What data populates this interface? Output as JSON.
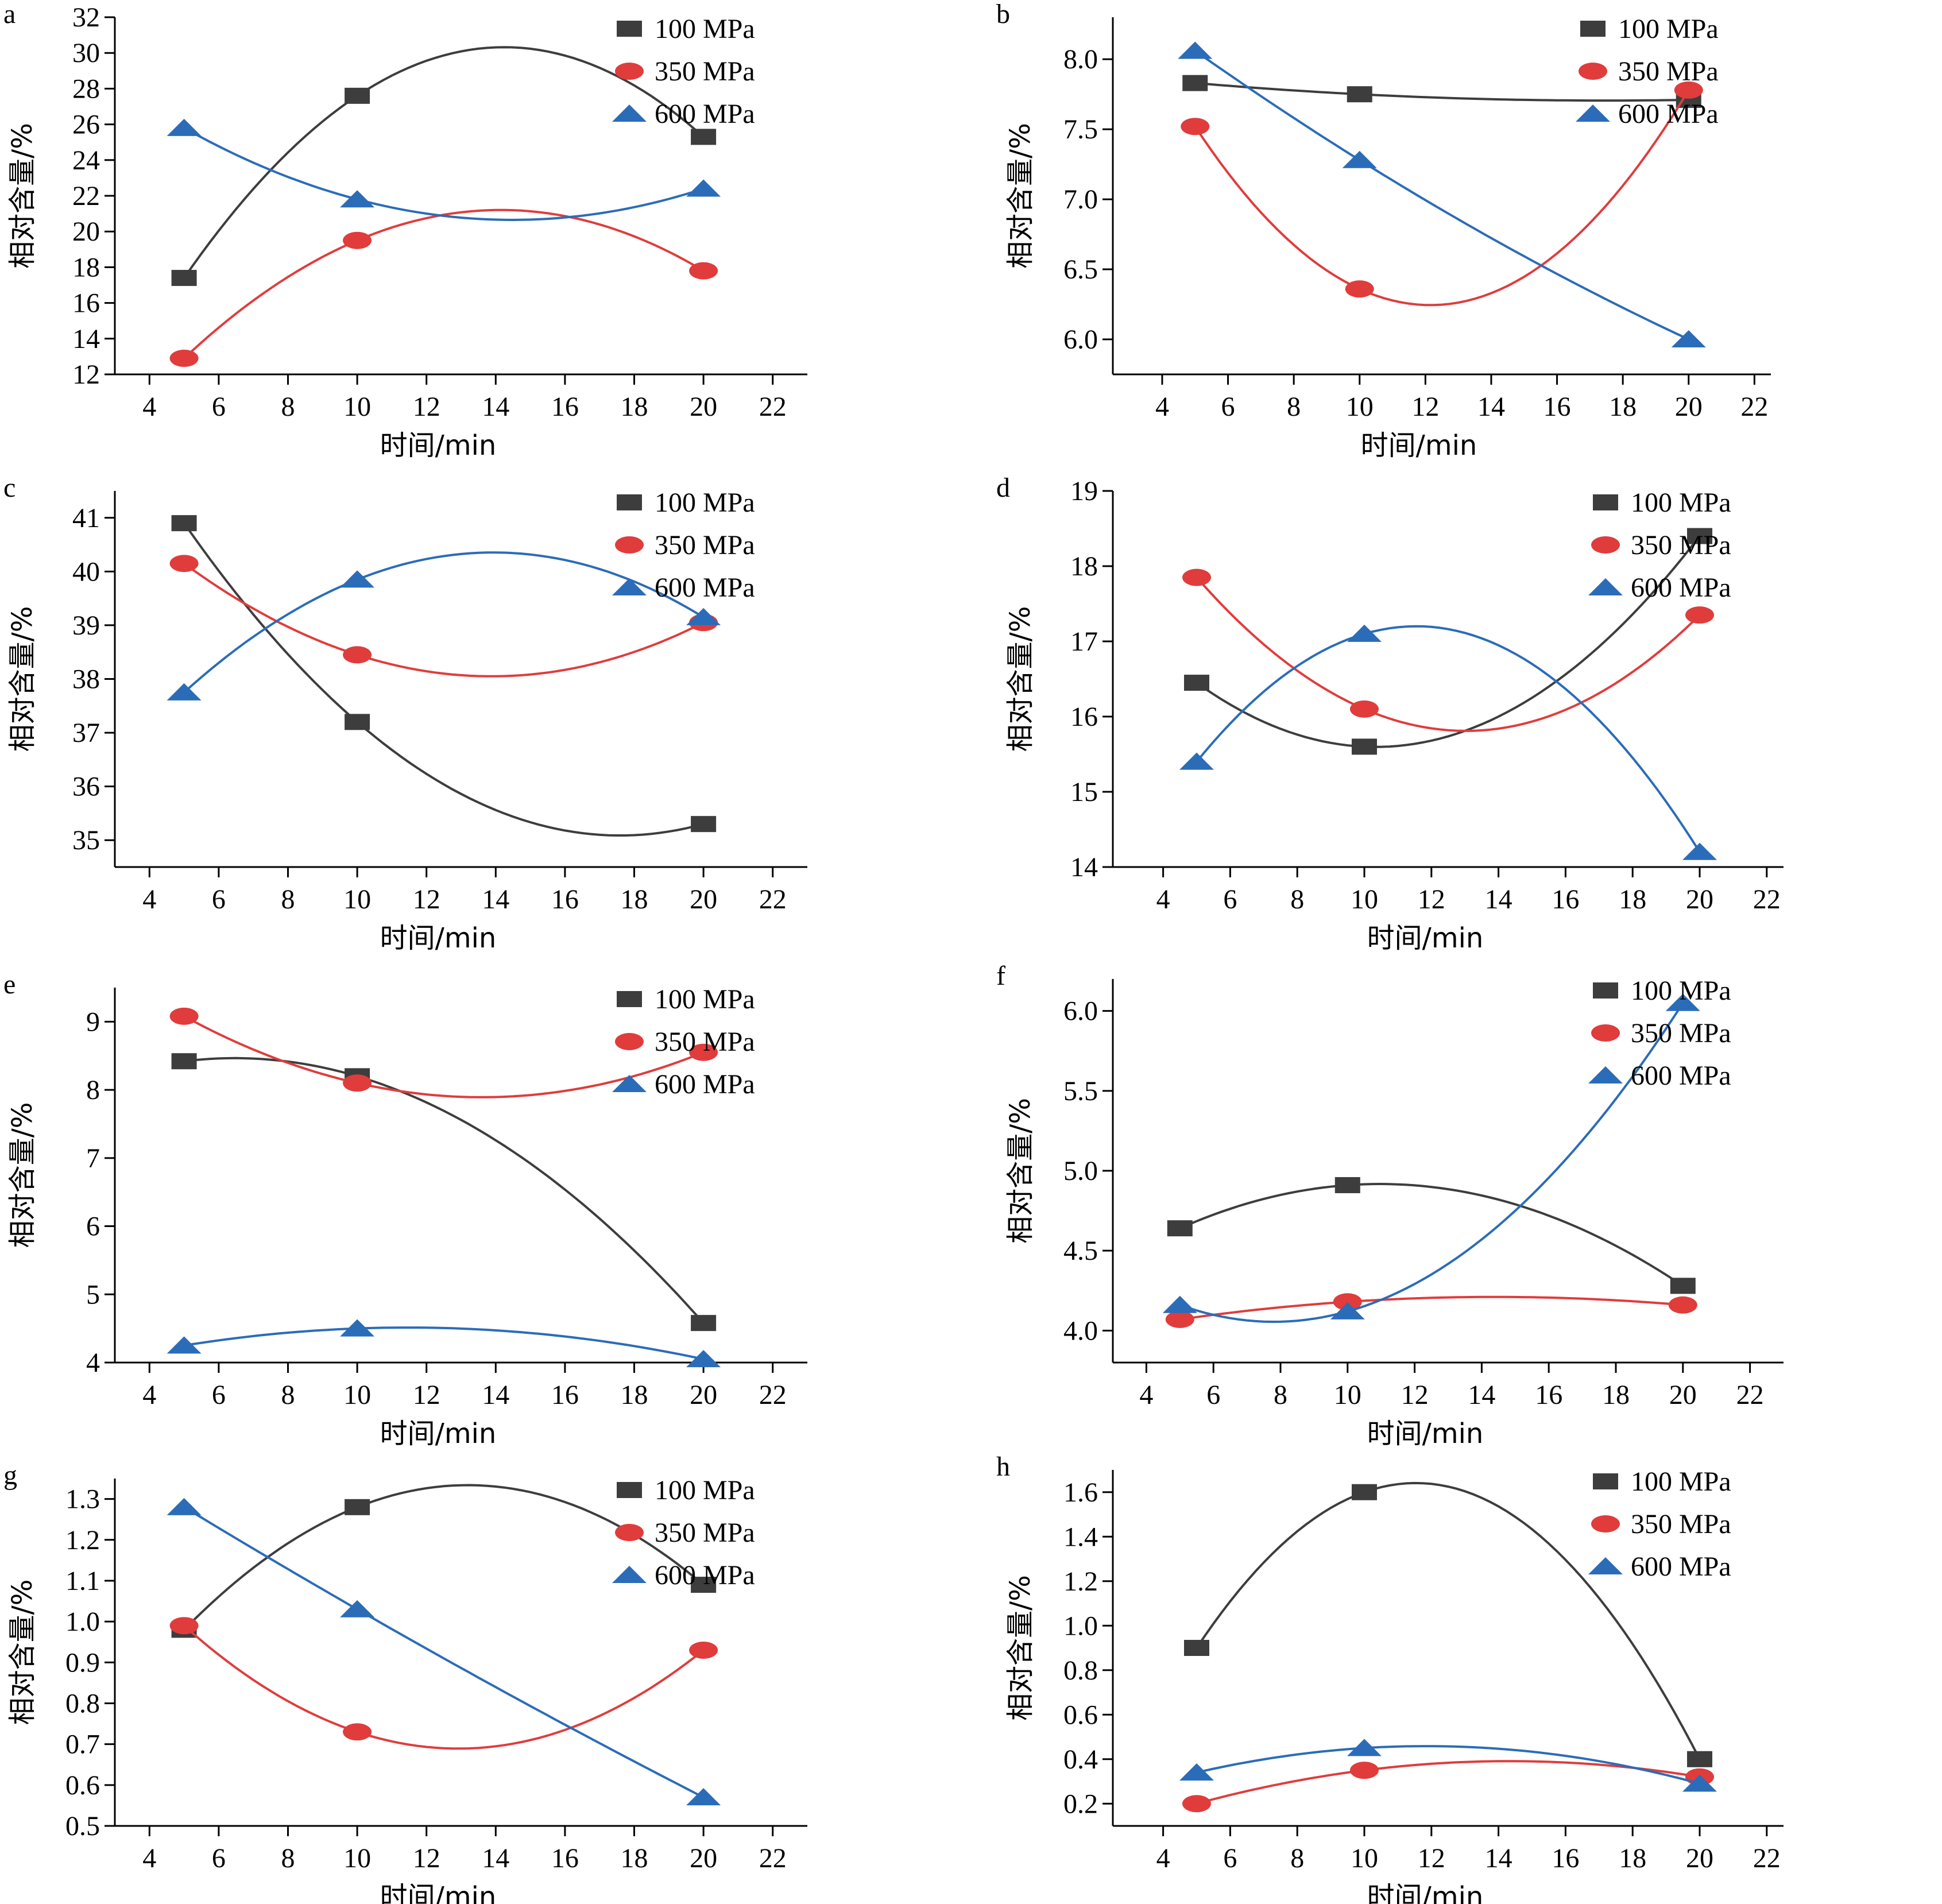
{
  "colors": {
    "s100": "#3d3d3d",
    "s350": "#e03c3c",
    "s600": "#2b6cb8"
  },
  "chart_data": [
    {
      "panel_label": "a",
      "type": "scatter",
      "x": [
        5,
        10,
        20
      ],
      "xlabel": "时间/min",
      "ylabel": "相对含量/%",
      "xlim": [
        3,
        23
      ],
      "xticks": [
        4,
        6,
        8,
        10,
        12,
        14,
        16,
        18,
        20,
        22
      ],
      "ylim": [
        12,
        32
      ],
      "yticks": [
        12,
        14,
        16,
        18,
        20,
        22,
        24,
        26,
        28,
        30,
        32
      ],
      "legend_position": "top-right",
      "series": [
        {
          "name": "100 MPa",
          "marker": "square",
          "values": [
            17.4,
            27.6,
            25.3
          ]
        },
        {
          "name": "350 MPa",
          "marker": "circle",
          "values": [
            12.9,
            19.5,
            17.8
          ]
        },
        {
          "name": "600 MPa",
          "marker": "triangle",
          "values": [
            25.8,
            21.8,
            22.4
          ]
        }
      ]
    },
    {
      "panel_label": "b",
      "type": "scatter",
      "x": [
        5,
        10,
        20
      ],
      "xlabel": "时间/min",
      "ylabel": "相对含量/%",
      "xlim": [
        2.5,
        22.5
      ],
      "xticks": [
        4,
        6,
        8,
        10,
        12,
        14,
        16,
        18,
        20,
        22
      ],
      "ylim": [
        5.75,
        8.3
      ],
      "yticks": [
        "6.0",
        "6.5",
        "7.0",
        "7.5",
        "8.0"
      ],
      "legend_position": "top-right",
      "series": [
        {
          "name": "100 MPa",
          "marker": "square",
          "values": [
            7.83,
            7.75,
            7.71
          ]
        },
        {
          "name": "350 MPa",
          "marker": "circle",
          "values": [
            7.52,
            6.36,
            7.78
          ]
        },
        {
          "name": "600 MPa",
          "marker": "triangle",
          "values": [
            8.06,
            7.28,
            6.0
          ]
        }
      ]
    },
    {
      "panel_label": "c",
      "type": "scatter",
      "x": [
        5,
        10,
        20
      ],
      "xlabel": "时间/min",
      "ylabel": "相对含量/%",
      "xlim": [
        3,
        23
      ],
      "xticks": [
        4,
        6,
        8,
        10,
        12,
        14,
        16,
        18,
        20,
        22
      ],
      "ylim": [
        34.5,
        41.5
      ],
      "yticks": [
        35,
        36,
        37,
        38,
        39,
        40,
        41
      ],
      "legend_position": "top-right",
      "series": [
        {
          "name": "100 MPa",
          "marker": "square",
          "values": [
            40.9,
            37.2,
            35.3
          ]
        },
        {
          "name": "350 MPa",
          "marker": "circle",
          "values": [
            40.15,
            38.45,
            39.05
          ]
        },
        {
          "name": "600 MPa",
          "marker": "triangle",
          "values": [
            37.75,
            39.85,
            39.15
          ]
        }
      ]
    },
    {
      "panel_label": "d",
      "type": "scatter",
      "x": [
        5,
        10,
        20
      ],
      "xlabel": "时间/min",
      "ylabel": "相对含量/%",
      "xlim": [
        2.5,
        22.5
      ],
      "xticks": [
        4,
        6,
        8,
        10,
        12,
        14,
        16,
        18,
        20,
        22
      ],
      "ylim": [
        14,
        19
      ],
      "yticks": [
        14,
        15,
        16,
        17,
        18,
        19
      ],
      "legend_position": "top-right",
      "series": [
        {
          "name": "100 MPa",
          "marker": "square",
          "values": [
            16.45,
            15.6,
            18.4
          ]
        },
        {
          "name": "350 MPa",
          "marker": "circle",
          "values": [
            17.85,
            16.1,
            17.35
          ]
        },
        {
          "name": "600 MPa",
          "marker": "triangle",
          "values": [
            15.4,
            17.1,
            14.2
          ]
        }
      ]
    },
    {
      "panel_label": "e",
      "type": "scatter",
      "x": [
        5,
        10,
        20
      ],
      "xlabel": "时间/min",
      "ylabel": "相对含量/%",
      "xlim": [
        3,
        23
      ],
      "xticks": [
        4,
        6,
        8,
        10,
        12,
        14,
        16,
        18,
        20,
        22
      ],
      "ylim": [
        4,
        9.5
      ],
      "yticks": [
        4,
        5,
        6,
        7,
        8,
        9
      ],
      "legend_position": "top-right",
      "series": [
        {
          "name": "100 MPa",
          "marker": "square",
          "values": [
            8.42,
            8.2,
            4.58
          ]
        },
        {
          "name": "350 MPa",
          "marker": "circle",
          "values": [
            9.08,
            8.1,
            8.55
          ]
        },
        {
          "name": "600 MPa",
          "marker": "triangle",
          "values": [
            4.25,
            4.5,
            4.05
          ]
        }
      ]
    },
    {
      "panel_label": "f",
      "type": "scatter",
      "x": [
        5,
        10,
        20
      ],
      "xlabel": "时间/min",
      "ylabel": "相对含量/%",
      "xlim": [
        3,
        23
      ],
      "xticks": [
        4,
        6,
        8,
        10,
        12,
        14,
        16,
        18,
        20,
        22
      ],
      "ylim": [
        3.8,
        6.2
      ],
      "yticks": [
        "4.0",
        "4.5",
        "5.0",
        "5.5",
        "6.0"
      ],
      "legend_position": "top-right",
      "series": [
        {
          "name": "100 MPa",
          "marker": "square",
          "values": [
            4.64,
            4.91,
            4.28
          ]
        },
        {
          "name": "350 MPa",
          "marker": "circle",
          "values": [
            4.07,
            4.18,
            4.16
          ]
        },
        {
          "name": "600 MPa",
          "marker": "triangle",
          "values": [
            4.16,
            4.12,
            6.05
          ]
        }
      ]
    },
    {
      "panel_label": "g",
      "type": "scatter",
      "x": [
        5,
        10,
        20
      ],
      "xlabel": "时间/min",
      "ylabel": "相对含量/%",
      "xlim": [
        3,
        23
      ],
      "xticks": [
        4,
        6,
        8,
        10,
        12,
        14,
        16,
        18,
        20,
        22
      ],
      "ylim": [
        0.5,
        1.35
      ],
      "yticks": [
        "0.5",
        "0.6",
        "0.7",
        "0.8",
        "0.9",
        "1.0",
        "1.1",
        "1.2",
        "1.3"
      ],
      "legend_position": "top-right",
      "series": [
        {
          "name": "100 MPa",
          "marker": "square",
          "values": [
            0.98,
            1.28,
            1.09
          ]
        },
        {
          "name": "350 MPa",
          "marker": "circle",
          "values": [
            0.99,
            0.73,
            0.93
          ]
        },
        {
          "name": "600 MPa",
          "marker": "triangle",
          "values": [
            1.28,
            1.03,
            0.57
          ]
        }
      ]
    },
    {
      "panel_label": "h",
      "type": "scatter",
      "x": [
        5,
        10,
        20
      ],
      "xlabel": "时间/min",
      "ylabel": "相对含量/%",
      "xlim": [
        2.5,
        22.5
      ],
      "xticks": [
        4,
        6,
        8,
        10,
        12,
        14,
        16,
        18,
        20,
        22
      ],
      "ylim": [
        0.1,
        1.7
      ],
      "yticks": [
        "0.2",
        "0.4",
        "0.6",
        "0.8",
        "1.0",
        "1.2",
        "1.4",
        "1.6"
      ],
      "legend_position": "top-right",
      "series": [
        {
          "name": "100 MPa",
          "marker": "square",
          "values": [
            0.9,
            1.6,
            0.4
          ]
        },
        {
          "name": "350 MPa",
          "marker": "circle",
          "values": [
            0.2,
            0.35,
            0.32
          ]
        },
        {
          "name": "600 MPa",
          "marker": "triangle",
          "values": [
            0.34,
            0.45,
            0.29
          ]
        }
      ]
    }
  ]
}
